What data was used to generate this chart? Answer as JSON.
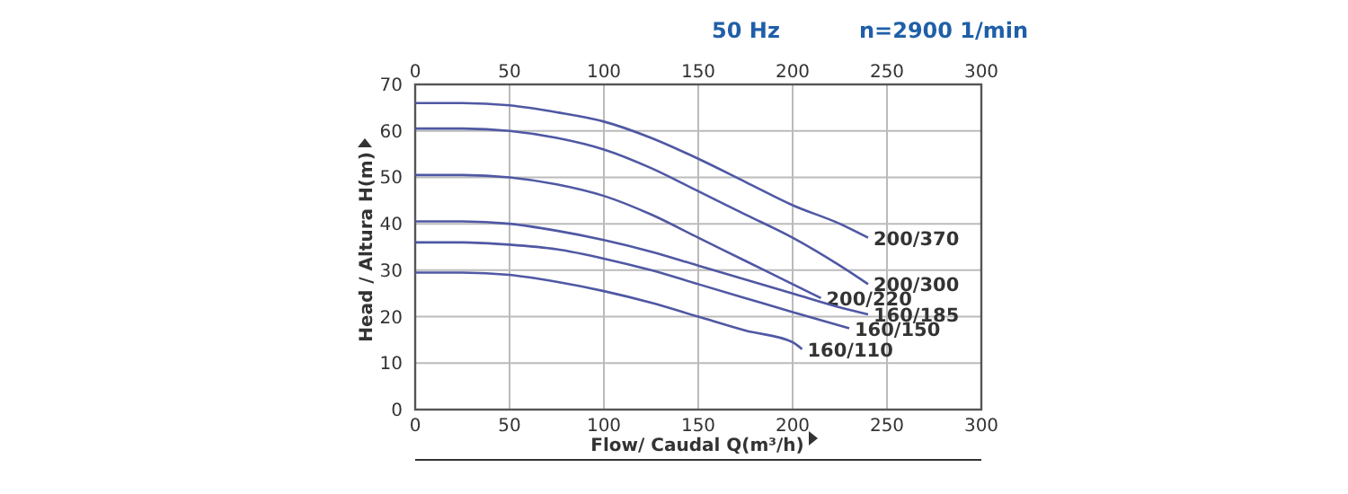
{
  "chart_data": {
    "type": "line",
    "title": "50 Hz",
    "subtitle": "n=2900 1/min",
    "xlabel": "Flow/ Caudal Q(m³/h)",
    "ylabel": "Head / Altura H(m)",
    "xlim": [
      0,
      300
    ],
    "xticks": [
      0,
      50,
      100,
      150,
      200,
      250,
      300
    ],
    "x2lim": [
      0,
      300
    ],
    "x2ticks": [
      0,
      50,
      100,
      150,
      200,
      250,
      300
    ],
    "ylim": [
      0,
      70
    ],
    "yticks": [
      0,
      10,
      20,
      30,
      40,
      50,
      60,
      70
    ],
    "grid": true,
    "marker": "none",
    "line_style": "solid",
    "series": [
      {
        "name": "200/370",
        "color": "#4f58a3",
        "x": [
          0,
          25,
          50,
          75,
          100,
          125,
          150,
          175,
          200,
          225,
          240
        ],
        "values": [
          66,
          66,
          65.5,
          64,
          62,
          58.5,
          54,
          49,
          44,
          40,
          37
        ]
      },
      {
        "name": "200/300",
        "color": "#4f58a3",
        "x": [
          0,
          25,
          50,
          75,
          100,
          125,
          150,
          175,
          200,
          225,
          240
        ],
        "values": [
          60.5,
          60.5,
          60,
          58.5,
          56,
          52,
          47,
          42,
          37,
          31,
          27
        ]
      },
      {
        "name": "200/220",
        "color": "#4f58a3",
        "x": [
          0,
          25,
          50,
          75,
          100,
          125,
          150,
          175,
          200,
          215
        ],
        "values": [
          50.5,
          50.5,
          50,
          48.5,
          46,
          42,
          37,
          32,
          27,
          24
        ]
      },
      {
        "name": "160/185",
        "color": "#4f58a3",
        "x": [
          0,
          25,
          50,
          75,
          100,
          125,
          150,
          175,
          200,
          225,
          240
        ],
        "values": [
          40.5,
          40.5,
          40,
          38.5,
          36.5,
          34,
          31,
          28,
          25,
          22,
          20.5
        ]
      },
      {
        "name": "160/150",
        "color": "#4f58a3",
        "x": [
          0,
          25,
          50,
          75,
          100,
          125,
          150,
          175,
          200,
          230
        ],
        "values": [
          36,
          36,
          35.5,
          34.5,
          32.5,
          30,
          27,
          24,
          21,
          17.5
        ]
      },
      {
        "name": "160/110",
        "color": "#4f58a3",
        "x": [
          0,
          25,
          50,
          75,
          100,
          125,
          150,
          175,
          200,
          205
        ],
        "values": [
          29.5,
          29.5,
          29,
          27.5,
          25.5,
          23,
          20,
          17,
          14.5,
          13
        ]
      }
    ]
  }
}
